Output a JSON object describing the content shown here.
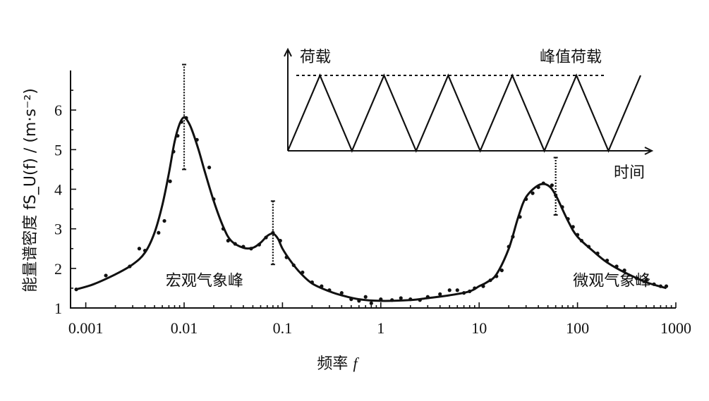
{
  "chart_data": {
    "type": "line",
    "xscale": "log",
    "xlim": [
      0.0007,
      1000
    ],
    "ylim": [
      1,
      7
    ],
    "xlabel_text": "频率",
    "xlabel_var": "f",
    "ylabel": "能量谱密度 fS_U(f) / (m·s⁻²)",
    "xticks": [
      {
        "v": 0.001,
        "label": "0.001"
      },
      {
        "v": 0.01,
        "label": "0.01"
      },
      {
        "v": 0.1,
        "label": "0.1"
      },
      {
        "v": 1,
        "label": "1"
      },
      {
        "v": 10,
        "label": "10"
      },
      {
        "v": 100,
        "label": "100"
      },
      {
        "v": 1000,
        "label": "1000"
      }
    ],
    "yticks": [
      1,
      2,
      3,
      4,
      5,
      6
    ],
    "curve": {
      "x": [
        0.0008,
        0.0012,
        0.002,
        0.003,
        0.004,
        0.005,
        0.006,
        0.007,
        0.008,
        0.009,
        0.01,
        0.011,
        0.012,
        0.014,
        0.016,
        0.02,
        0.025,
        0.03,
        0.04,
        0.05,
        0.06,
        0.07,
        0.08,
        0.09,
        0.1,
        0.12,
        0.15,
        0.2,
        0.3,
        0.4,
        0.6,
        1,
        2,
        3,
        5,
        8,
        10,
        12,
        15,
        20,
        25,
        30,
        40,
        50,
        60,
        80,
        100,
        150,
        200,
        300,
        500,
        800
      ],
      "y": [
        1.47,
        1.6,
        1.85,
        2.1,
        2.4,
        2.9,
        3.6,
        4.4,
        5.2,
        5.65,
        5.82,
        5.7,
        5.5,
        5.0,
        4.5,
        3.7,
        3.05,
        2.7,
        2.52,
        2.52,
        2.65,
        2.82,
        2.88,
        2.75,
        2.5,
        2.2,
        1.9,
        1.62,
        1.42,
        1.32,
        1.22,
        1.18,
        1.2,
        1.25,
        1.32,
        1.42,
        1.55,
        1.65,
        1.85,
        2.5,
        3.3,
        3.8,
        4.1,
        4.1,
        3.85,
        3.2,
        2.8,
        2.4,
        2.15,
        1.9,
        1.65,
        1.5
      ]
    },
    "points": [
      [
        0.0008,
        1.47
      ],
      [
        0.0016,
        1.82
      ],
      [
        0.0028,
        2.05
      ],
      [
        0.0035,
        2.5
      ],
      [
        0.004,
        2.45
      ],
      [
        0.0055,
        2.9
      ],
      [
        0.0063,
        3.2
      ],
      [
        0.0072,
        4.2
      ],
      [
        0.0078,
        4.95
      ],
      [
        0.0086,
        5.35
      ],
      [
        0.0094,
        5.7
      ],
      [
        0.0105,
        5.8
      ],
      [
        0.0135,
        5.25
      ],
      [
        0.018,
        4.55
      ],
      [
        0.02,
        3.75
      ],
      [
        0.025,
        3.0
      ],
      [
        0.028,
        2.7
      ],
      [
        0.033,
        2.62
      ],
      [
        0.04,
        2.55
      ],
      [
        0.048,
        2.5
      ],
      [
        0.058,
        2.6
      ],
      [
        0.068,
        2.78
      ],
      [
        0.08,
        2.9
      ],
      [
        0.095,
        2.7
      ],
      [
        0.11,
        2.28
      ],
      [
        0.13,
        2.08
      ],
      [
        0.16,
        1.9
      ],
      [
        0.2,
        1.65
      ],
      [
        0.25,
        1.55
      ],
      [
        0.3,
        1.45
      ],
      [
        0.4,
        1.38
      ],
      [
        0.5,
        1.22
      ],
      [
        0.6,
        1.18
      ],
      [
        0.7,
        1.28
      ],
      [
        0.8,
        1.12
      ],
      [
        1.0,
        1.22
      ],
      [
        1.3,
        1.2
      ],
      [
        1.6,
        1.25
      ],
      [
        2.0,
        1.22
      ],
      [
        2.5,
        1.2
      ],
      [
        3.0,
        1.28
      ],
      [
        4.0,
        1.35
      ],
      [
        5.0,
        1.45
      ],
      [
        6.0,
        1.45
      ],
      [
        7.0,
        1.38
      ],
      [
        8.0,
        1.42
      ],
      [
        9.0,
        1.5
      ],
      [
        11,
        1.55
      ],
      [
        13,
        1.7
      ],
      [
        15,
        1.8
      ],
      [
        17,
        1.95
      ],
      [
        20,
        2.55
      ],
      [
        22,
        2.8
      ],
      [
        26,
        3.3
      ],
      [
        30,
        3.75
      ],
      [
        35,
        3.9
      ],
      [
        40,
        4.05
      ],
      [
        45,
        4.15
      ],
      [
        55,
        4.1
      ],
      [
        60,
        3.85
      ],
      [
        70,
        3.55
      ],
      [
        80,
        3.25
      ],
      [
        90,
        3.05
      ],
      [
        100,
        2.85
      ],
      [
        110,
        2.7
      ],
      [
        130,
        2.55
      ],
      [
        160,
        2.38
      ],
      [
        200,
        2.2
      ],
      [
        250,
        2.05
      ],
      [
        300,
        1.95
      ],
      [
        400,
        1.75
      ],
      [
        500,
        1.7
      ],
      [
        600,
        1.6
      ],
      [
        700,
        1.55
      ],
      [
        800,
        1.55
      ]
    ],
    "errorbars": [
      {
        "x": 0.01,
        "y": 5.82,
        "low": 4.5,
        "high": 7.15
      },
      {
        "x": 0.08,
        "y": 2.88,
        "low": 2.1,
        "high": 3.7
      },
      {
        "x": 60,
        "y": 3.85,
        "low": 3.35,
        "high": 4.8
      }
    ],
    "annotations": [
      {
        "text": "宏观气象峰",
        "x": 0.0065,
        "y": 1.7
      },
      {
        "text": "微观气象峰",
        "x": 90,
        "y": 1.7
      }
    ],
    "inset": {
      "ylabel": "荷载",
      "xlabel": "时间",
      "peak_label": "峰值荷载",
      "cycles": 5.5
    }
  }
}
